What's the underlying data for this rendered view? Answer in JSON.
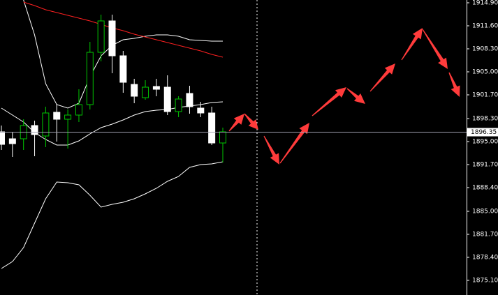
{
  "chart_data": {
    "type": "candlestick",
    "categories": [
      null,
      null,
      null,
      null,
      null,
      null,
      null,
      null,
      null,
      null,
      null,
      null,
      null,
      null,
      null,
      null,
      null,
      null,
      null,
      null,
      null
    ],
    "open": [
      1896.4,
      1895.4,
      1895.4,
      1897.3,
      1895.8,
      1899.2,
      1898.2,
      1898.8,
      1900.3,
      1907.8,
      1912.3,
      1907.3,
      1903.2,
      1901.3,
      1902.9,
      1902.8,
      1899.3,
      1901.9,
      1899.8,
      1899.1,
      1894.8
    ],
    "high": [
      1897.3,
      1896.3,
      1898.2,
      1898.0,
      1900.0,
      1900.4,
      1899.6,
      1902.5,
      1909.3,
      1913.2,
      1913.2,
      1908.0,
      1904.0,
      1903.8,
      1904.0,
      1904.5,
      1901.5,
      1903.0,
      1900.7,
      1900.0,
      1897.0
    ],
    "low": [
      1893.8,
      1892.8,
      1893.8,
      1892.9,
      1894.2,
      1895.0,
      1894.0,
      1897.8,
      1899.6,
      1906.5,
      1904.8,
      1902.0,
      1900.5,
      1901.0,
      1901.5,
      1898.8,
      1898.5,
      1899.0,
      1898.5,
      1894.5,
      1892.0
    ],
    "close": [
      1894.6,
      1894.7,
      1897.3,
      1896.0,
      1899.1,
      1898.2,
      1898.8,
      1900.3,
      1907.8,
      1912.3,
      1907.3,
      1903.5,
      1901.5,
      1902.8,
      1902.5,
      1899.3,
      1901.1,
      1900.0,
      1899.1,
      1894.8,
      1896.4
    ],
    "up_color": "#00c800",
    "down_color": "#ffffff",
    "bands": {
      "color": "#ffffff",
      "upper": [
        null,
        null,
        1915.3,
        1910.3,
        1903.3,
        1900.3,
        1899.8,
        1900.5,
        1904.3,
        1907.3,
        1908.8,
        1909.6,
        1909.8,
        1910.1,
        1910.3,
        1910.3,
        1910.1,
        1909.6,
        1909.5,
        1909.4,
        1909.4
      ],
      "middle": [
        1899.8,
        1898.8,
        1897.8,
        1896.3,
        1895.3,
        1894.5,
        1894.5,
        1895.1,
        1896.1,
        1897.0,
        1897.5,
        1898.1,
        1898.8,
        1899.3,
        1899.5,
        1899.6,
        1899.9,
        1900.1,
        1900.3,
        1900.6,
        1900.7
      ],
      "lower": [
        1876.8,
        1877.8,
        1879.8,
        1883.3,
        1886.8,
        1889.2,
        1889.1,
        1888.8,
        1887.3,
        1885.6,
        1886.0,
        1886.3,
        1886.8,
        1887.5,
        1888.3,
        1889.3,
        1890.0,
        1891.3,
        1891.7,
        1891.8,
        1892.1
      ]
    },
    "moving_average": {
      "color": "#ff2020",
      "values": [
        null,
        null,
        1915.0,
        1914.5,
        1913.9,
        1913.5,
        1913.1,
        1912.7,
        1912.3,
        1911.8,
        1911.3,
        1910.9,
        1910.4,
        1910.0,
        1909.6,
        1909.2,
        1908.8,
        1908.4,
        1908.0,
        1907.5,
        1907.1
      ]
    },
    "current_price": {
      "value": 1896.35,
      "label": "1896.35"
    },
    "ylim": [
      1873.0,
      1915.3
    ],
    "yticks": [
      {
        "value": 1914.9,
        "label": "1914.90"
      },
      {
        "value": 1911.6,
        "label": "1911.60"
      },
      {
        "value": 1908.3,
        "label": "1908.30"
      },
      {
        "value": 1905.0,
        "label": "1905.00"
      },
      {
        "value": 1901.7,
        "label": "1901.70"
      },
      {
        "value": 1898.3,
        "label": "1898.30"
      },
      {
        "value": 1895.0,
        "label": "1895.00"
      },
      {
        "value": 1891.7,
        "label": "1891.70"
      },
      {
        "value": 1888.4,
        "label": "1888.40"
      },
      {
        "value": 1885.0,
        "label": "1885.00"
      },
      {
        "value": 1881.7,
        "label": "1881.70"
      },
      {
        "value": 1878.4,
        "label": "1878.40"
      },
      {
        "value": 1875.1,
        "label": "1875.10"
      }
    ],
    "grid": false
  }
}
